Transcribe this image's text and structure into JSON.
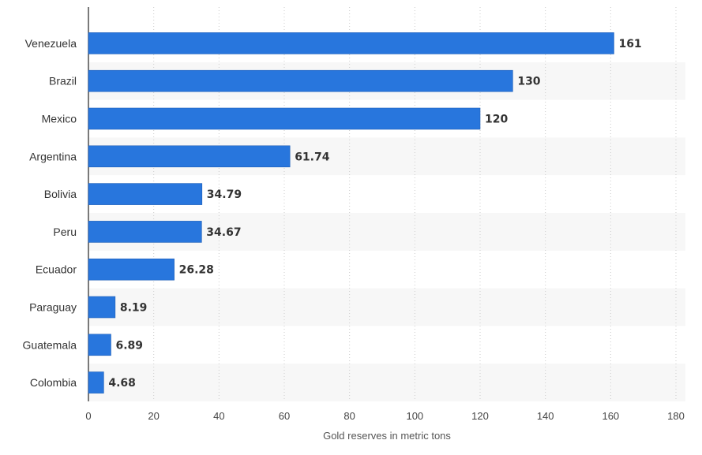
{
  "chart_data": {
    "type": "bar",
    "orientation": "horizontal",
    "categories": [
      "Venezuela",
      "Brazil",
      "Mexico",
      "Argentina",
      "Bolivia",
      "Peru",
      "Ecuador",
      "Paraguay",
      "Guatemala",
      "Colombia"
    ],
    "values": [
      161,
      130,
      120,
      61.74,
      34.79,
      34.67,
      26.28,
      8.19,
      6.89,
      4.68
    ],
    "value_labels": [
      "161",
      "130",
      "120",
      "61.74",
      "34.79",
      "34.67",
      "26.28",
      "8.19",
      "6.89",
      "4.68"
    ],
    "xlabel": "Gold reserves in metric tons",
    "xlim": [
      0,
      180
    ],
    "xticks": [
      0,
      20,
      40,
      60,
      80,
      100,
      120,
      140,
      160,
      180
    ],
    "grid": "vertical dotted",
    "bar_color": "#2876dd",
    "band_color": "#f7f7f7"
  }
}
